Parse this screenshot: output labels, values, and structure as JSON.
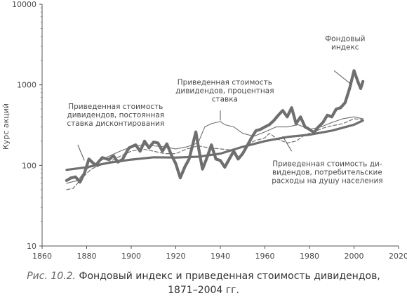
{
  "chart_data": {
    "type": "line",
    "xlim": [
      1860,
      2020
    ],
    "ylim": [
      10,
      10000
    ],
    "y_scale": "log",
    "ylabel": "Курс акций",
    "x_ticks": [
      1860,
      1880,
      1900,
      1920,
      1940,
      1960,
      1980,
      2000,
      2020
    ],
    "y_ticks": [
      {
        "value": 10,
        "label": "10"
      },
      {
        "value": 100,
        "label": "100"
      },
      {
        "value": 1000,
        "label": "1000"
      },
      {
        "value": 10000,
        "label": "10000"
      }
    ],
    "grid": false,
    "series": [
      {
        "name": "Фондовый индекс",
        "style": "thick",
        "color": "#6f6f6f",
        "points": [
          [
            1871,
            65
          ],
          [
            1873,
            70
          ],
          [
            1875,
            72
          ],
          [
            1877,
            62
          ],
          [
            1879,
            80
          ],
          [
            1881,
            120
          ],
          [
            1884,
            100
          ],
          [
            1887,
            125
          ],
          [
            1890,
            118
          ],
          [
            1892,
            132
          ],
          [
            1894,
            110
          ],
          [
            1896,
            118
          ],
          [
            1899,
            165
          ],
          [
            1902,
            180
          ],
          [
            1904,
            150
          ],
          [
            1906,
            200
          ],
          [
            1908,
            165
          ],
          [
            1910,
            195
          ],
          [
            1912,
            190
          ],
          [
            1914,
            150
          ],
          [
            1916,
            185
          ],
          [
            1918,
            135
          ],
          [
            1920,
            105
          ],
          [
            1922,
            70
          ],
          [
            1924,
            95
          ],
          [
            1926,
            120
          ],
          [
            1929,
            260
          ],
          [
            1931,
            125
          ],
          [
            1932,
            90
          ],
          [
            1934,
            125
          ],
          [
            1936,
            180
          ],
          [
            1938,
            120
          ],
          [
            1940,
            115
          ],
          [
            1942,
            95
          ],
          [
            1944,
            120
          ],
          [
            1946,
            150
          ],
          [
            1948,
            120
          ],
          [
            1950,
            140
          ],
          [
            1952,
            175
          ],
          [
            1954,
            220
          ],
          [
            1956,
            270
          ],
          [
            1958,
            280
          ],
          [
            1960,
            300
          ],
          [
            1962,
            320
          ],
          [
            1964,
            360
          ],
          [
            1966,
            420
          ],
          [
            1968,
            480
          ],
          [
            1970,
            400
          ],
          [
            1972,
            520
          ],
          [
            1974,
            330
          ],
          [
            1976,
            400
          ],
          [
            1978,
            300
          ],
          [
            1980,
            280
          ],
          [
            1982,
            255
          ],
          [
            1984,
            300
          ],
          [
            1986,
            340
          ],
          [
            1988,
            420
          ],
          [
            1990,
            400
          ],
          [
            1992,
            500
          ],
          [
            1994,
            520
          ],
          [
            1996,
            600
          ],
          [
            1998,
            900
          ],
          [
            2000,
            1500
          ],
          [
            2002,
            1050
          ],
          [
            2003,
            900
          ],
          [
            2004,
            1100
          ]
        ]
      },
      {
        "name": "Приведенная стоимость дивидендов, постоянная ставка дисконтирования",
        "style": "medium",
        "color": "#6f6f6f",
        "points": [
          [
            1871,
            88
          ],
          [
            1880,
            95
          ],
          [
            1890,
            108
          ],
          [
            1900,
            118
          ],
          [
            1910,
            126
          ],
          [
            1920,
            125
          ],
          [
            1930,
            128
          ],
          [
            1940,
            140
          ],
          [
            1950,
            170
          ],
          [
            1960,
            200
          ],
          [
            1970,
            225
          ],
          [
            1980,
            240
          ],
          [
            1990,
            270
          ],
          [
            2000,
            320
          ],
          [
            2004,
            360
          ]
        ]
      },
      {
        "name": "Приведенная стоимость дивидендов, процентная ставка",
        "style": "thin",
        "color": "#6f6f6f",
        "points": [
          [
            1871,
            60
          ],
          [
            1876,
            65
          ],
          [
            1880,
            90
          ],
          [
            1885,
            110
          ],
          [
            1890,
            130
          ],
          [
            1895,
            150
          ],
          [
            1900,
            170
          ],
          [
            1905,
            180
          ],
          [
            1910,
            175
          ],
          [
            1915,
            170
          ],
          [
            1920,
            160
          ],
          [
            1925,
            170
          ],
          [
            1930,
            190
          ],
          [
            1933,
            300
          ],
          [
            1936,
            330
          ],
          [
            1940,
            350
          ],
          [
            1942,
            320
          ],
          [
            1946,
            300
          ],
          [
            1950,
            250
          ],
          [
            1955,
            230
          ],
          [
            1960,
            260
          ],
          [
            1965,
            300
          ],
          [
            1970,
            300
          ],
          [
            1975,
            320
          ],
          [
            1980,
            280
          ],
          [
            1985,
            300
          ],
          [
            1990,
            340
          ],
          [
            1995,
            380
          ],
          [
            2000,
            400
          ],
          [
            2004,
            380
          ]
        ]
      },
      {
        "name": "Приведенная стоимость дивидендов, потребительские расходы на душу населения",
        "style": "dashed",
        "color": "#6f6f6f",
        "points": [
          [
            1871,
            50
          ],
          [
            1874,
            52
          ],
          [
            1878,
            70
          ],
          [
            1882,
            90
          ],
          [
            1886,
            100
          ],
          [
            1890,
            110
          ],
          [
            1895,
            130
          ],
          [
            1900,
            150
          ],
          [
            1905,
            160
          ],
          [
            1910,
            150
          ],
          [
            1915,
            140
          ],
          [
            1920,
            140
          ],
          [
            1925,
            160
          ],
          [
            1930,
            175
          ],
          [
            1935,
            165
          ],
          [
            1940,
            160
          ],
          [
            1945,
            155
          ],
          [
            1950,
            170
          ],
          [
            1955,
            200
          ],
          [
            1960,
            220
          ],
          [
            1962,
            250
          ],
          [
            1966,
            210
          ],
          [
            1970,
            190
          ],
          [
            1974,
            200
          ],
          [
            1978,
            240
          ],
          [
            1982,
            260
          ],
          [
            1986,
            290
          ],
          [
            1990,
            310
          ],
          [
            1995,
            330
          ],
          [
            2000,
            380
          ],
          [
            2004,
            370
          ]
        ]
      }
    ],
    "annotations": [
      {
        "id": "index",
        "lines": [
          "Фондовый",
          "индекс"
        ],
        "x": 1996,
        "y": 3500
      },
      {
        "id": "dividends-constant",
        "lines": [
          "Приведенная стоимость",
          "дивидендов, постоянная",
          "ставка дисконтирования"
        ],
        "x": 1893,
        "y": 500
      },
      {
        "id": "dividends-interest",
        "lines": [
          "Приведенная стоимость",
          "дивидендов, процентная",
          "ставка"
        ],
        "x": 1942,
        "y": 1000
      },
      {
        "id": "dividends-consumption",
        "lines": [
          "Приведенная стоимость ди-",
          "видендов, потребительские",
          "расходы на душу населения"
        ],
        "x": 1988,
        "y": 98
      }
    ]
  },
  "caption": {
    "figure_label": "Рис. 10.2.",
    "title_line1": "Фондовый индекс и приведенная стоимость дивидендов,",
    "title_line2": "1871–2004 гг."
  }
}
